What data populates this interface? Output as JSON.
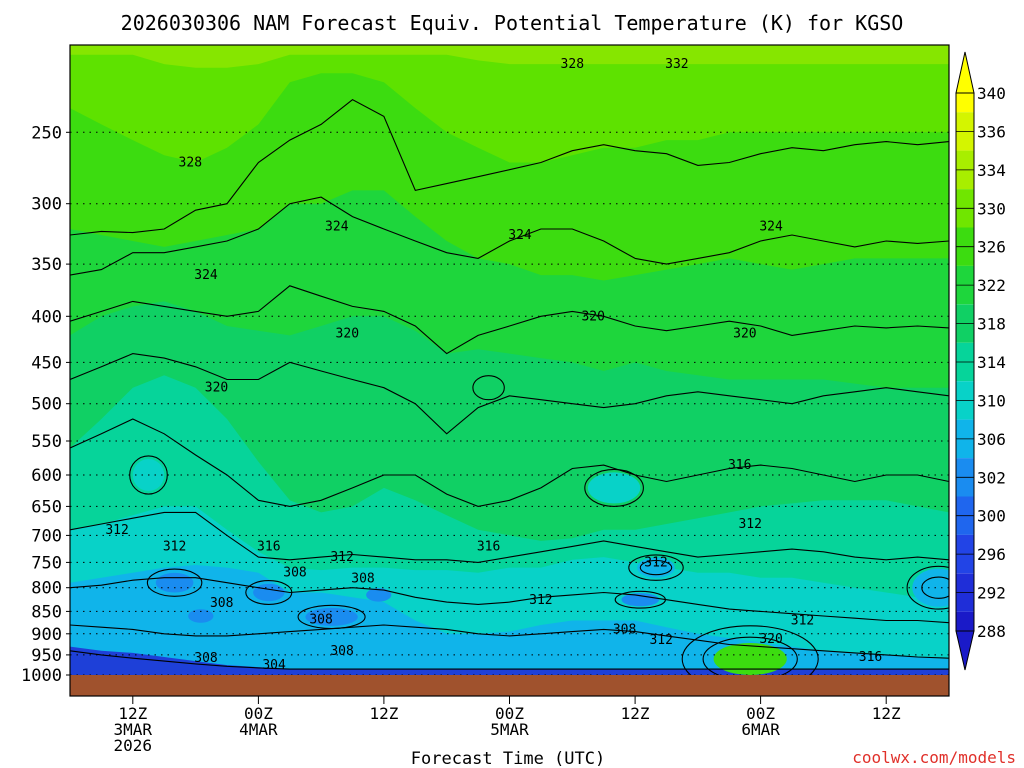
{
  "chart_data": {
    "type": "heatmap",
    "title": "2026030306 NAM Forecast Equiv. Potential Temperature (K) for KGSO",
    "xlabel": "Forecast Time (UTC)",
    "ylabel": "",
    "y_scale": "log",
    "y_inverted": true,
    "ylim": [
      1000,
      200
    ],
    "y_ticks": [
      250,
      300,
      350,
      400,
      450,
      500,
      550,
      600,
      650,
      700,
      750,
      800,
      850,
      900,
      950,
      1000
    ],
    "x_ticks": [
      {
        "line1": "12Z",
        "line2": "3MAR",
        "line3": "2026",
        "hour": 6
      },
      {
        "line1": "00Z",
        "line2": "4MAR",
        "line3": "",
        "hour": 18
      },
      {
        "line1": "12Z",
        "line2": "",
        "line3": "",
        "hour": 30
      },
      {
        "line1": "00Z",
        "line2": "5MAR",
        "line3": "",
        "hour": 42
      },
      {
        "line1": "12Z",
        "line2": "",
        "line3": "",
        "hour": 54
      },
      {
        "line1": "00Z",
        "line2": "6MAR",
        "line3": "",
        "hour": 66
      },
      {
        "line1": "12Z",
        "line2": "",
        "line3": "",
        "hour": 78
      }
    ],
    "xlim_hours": [
      0,
      84
    ],
    "grid": true,
    "colorbar": {
      "labels": [
        "340",
        "336",
        "334",
        "330",
        "326",
        "322",
        "318",
        "314",
        "310",
        "306",
        "302",
        "300",
        "296",
        "292",
        "288"
      ],
      "colors": [
        "#ffff00",
        "#d4f500",
        "#a8ee00",
        "#70e600",
        "#3cdc10",
        "#1ed63c",
        "#10d064",
        "#06d49a",
        "#08d2c8",
        "#10b4ea",
        "#1a8cf0",
        "#1f66ee",
        "#2244e6",
        "#1f2ed8",
        "#1a1ac8"
      ]
    },
    "contour_labels": [
      {
        "text": "328",
        "h": 48,
        "p": 210
      },
      {
        "text": "332",
        "h": 58,
        "p": 210
      },
      {
        "text": "328",
        "h": 11.5,
        "p": 270
      },
      {
        "text": "324",
        "h": 25.5,
        "p": 318
      },
      {
        "text": "324",
        "h": 43,
        "p": 325
      },
      {
        "text": "324",
        "h": 67,
        "p": 318
      },
      {
        "text": "324",
        "h": 13,
        "p": 360
      },
      {
        "text": "320",
        "h": 50,
        "p": 400
      },
      {
        "text": "320",
        "h": 26.5,
        "p": 418
      },
      {
        "text": "320",
        "h": 64.5,
        "p": 418
      },
      {
        "text": "320",
        "h": 14,
        "p": 480
      },
      {
        "text": "316",
        "h": 64,
        "p": 585
      },
      {
        "text": "312",
        "h": 4.5,
        "p": 690
      },
      {
        "text": "312",
        "h": 10,
        "p": 720
      },
      {
        "text": "316",
        "h": 19,
        "p": 720
      },
      {
        "text": "312",
        "h": 65,
        "p": 680
      },
      {
        "text": "316",
        "h": 40,
        "p": 720
      },
      {
        "text": "312",
        "h": 26,
        "p": 740
      },
      {
        "text": "312",
        "h": 56,
        "p": 750
      },
      {
        "text": "308",
        "h": 21.5,
        "p": 770
      },
      {
        "text": "308",
        "h": 28,
        "p": 782
      },
      {
        "text": "308",
        "h": 14.5,
        "p": 832
      },
      {
        "text": "312",
        "h": 45,
        "p": 826
      },
      {
        "text": "308",
        "h": 24,
        "p": 868
      },
      {
        "text": "308",
        "h": 53,
        "p": 890
      },
      {
        "text": "312",
        "h": 70,
        "p": 870
      },
      {
        "text": "312",
        "h": 56.5,
        "p": 915
      },
      {
        "text": "320",
        "h": 67,
        "p": 912
      },
      {
        "text": "308",
        "h": 26,
        "p": 940
      },
      {
        "text": "308",
        "h": 13,
        "p": 958
      },
      {
        "text": "304",
        "h": 19.5,
        "p": 975
      },
      {
        "text": "316",
        "h": 76.5,
        "p": 955
      }
    ],
    "bands": [
      {
        "color": "#1e40d8",
        "p": [
          1000,
          1000,
          1000,
          1000,
          1000,
          1000,
          1000,
          1000,
          1000,
          1000,
          1000,
          1000,
          1000,
          1000,
          1000,
          1000,
          1000,
          1000,
          1000,
          1000,
          1000,
          1000,
          1000,
          1000,
          1000,
          1000,
          1000,
          1000,
          1000
        ]
      },
      {
        "color": "#10b4ea",
        "p": [
          930,
          940,
          945,
          955,
          965,
          975,
          980,
          985,
          985,
          985,
          985,
          985,
          985,
          985,
          985,
          985,
          985,
          985,
          985,
          985,
          985,
          985,
          985,
          985,
          985,
          985,
          985,
          985,
          985
        ]
      },
      {
        "color": "#08d2c8",
        "p": [
          790,
          780,
          770,
          760,
          755,
          760,
          770,
          810,
          810,
          820,
          830,
          870,
          900,
          900,
          895,
          880,
          870,
          870,
          870,
          885,
          900,
          910,
          920,
          930,
          940,
          945,
          950,
          955,
          960
        ]
      },
      {
        "color": "#06d49a",
        "p": [
          690,
          680,
          665,
          650,
          650,
          690,
          730,
          760,
          765,
          760,
          760,
          765,
          765,
          770,
          760,
          760,
          745,
          740,
          750,
          760,
          770,
          770,
          780,
          780,
          790,
          800,
          810,
          820,
          830
        ]
      },
      {
        "color": "#10d064",
        "p": [
          560,
          520,
          480,
          465,
          480,
          520,
          580,
          640,
          660,
          650,
          620,
          640,
          665,
          690,
          700,
          710,
          705,
          690,
          690,
          680,
          670,
          660,
          650,
          645,
          640,
          640,
          640,
          650,
          660
        ]
      },
      {
        "color": "#1ed63c",
        "p": [
          420,
          400,
          390,
          385,
          395,
          410,
          415,
          420,
          410,
          400,
          400,
          415,
          440,
          435,
          440,
          445,
          450,
          460,
          450,
          460,
          465,
          470,
          470,
          470,
          470,
          475,
          480,
          480,
          480
        ]
      },
      {
        "color": "#3cdc10",
        "p": [
          320,
          325,
          330,
          335,
          330,
          325,
          320,
          300,
          300,
          290,
          290,
          310,
          330,
          345,
          350,
          360,
          360,
          365,
          360,
          355,
          350,
          345,
          350,
          355,
          350,
          345,
          345,
          345,
          345
        ]
      },
      {
        "color": "#5ee200",
        "p": [
          235,
          245,
          255,
          265,
          270,
          260,
          245,
          220,
          215,
          215,
          220,
          235,
          250,
          260,
          270,
          270,
          265,
          260,
          260,
          255,
          255,
          250,
          250,
          250,
          250,
          250,
          250,
          250,
          250
        ]
      },
      {
        "color": "#86e600",
        "p": [
          205,
          205,
          205,
          210,
          212,
          212,
          210,
          205,
          205,
          205,
          205,
          205,
          205,
          208,
          210,
          210,
          210,
          210,
          210,
          210,
          210,
          210,
          210,
          210,
          210,
          210,
          210,
          210,
          210
        ]
      }
    ],
    "patches": [
      {
        "color": "#1a8cf0",
        "h": 10,
        "p": 790,
        "rh": 1.8,
        "rp": 20
      },
      {
        "color": "#1a8cf0",
        "h": 19,
        "p": 810,
        "rh": 1.5,
        "rp": 18
      },
      {
        "color": "#1a8cf0",
        "h": 25,
        "p": 862,
        "rh": 2.5,
        "rp": 20
      },
      {
        "color": "#1a8cf0",
        "h": 12.5,
        "p": 860,
        "rh": 1.2,
        "rp": 15
      },
      {
        "color": "#1a8cf0",
        "h": 29.5,
        "p": 815,
        "rh": 1.2,
        "rp": 14
      },
      {
        "color": "#1a8cf0",
        "h": 54.5,
        "p": 825,
        "rh": 1.8,
        "rp": 14
      },
      {
        "color": "#10b4ea",
        "h": 83,
        "p": 800,
        "rh": 2.5,
        "rp": 40
      },
      {
        "color": "#10b4ea",
        "h": 56,
        "p": 760,
        "rh": 1.8,
        "rp": 20
      },
      {
        "color": "#3cdc10",
        "h": 65,
        "p": 960,
        "rh": 3.5,
        "rp": 40
      },
      {
        "color": "#08d2c8",
        "h": 52,
        "p": 620,
        "rh": 2.5,
        "rp": 25
      },
      {
        "color": "#08d2c8",
        "h": 7.5,
        "p": 600,
        "rh": 1.5,
        "rp": 25
      }
    ],
    "contours": [
      [
        325,
        322,
        323,
        320,
        305,
        300,
        270,
        255,
        245,
        230,
        240,
        290,
        285,
        280,
        275,
        270,
        262,
        258,
        262,
        264,
        272,
        270,
        264,
        260,
        262,
        258,
        256,
        258,
        256
      ],
      [
        360,
        355,
        340,
        340,
        335,
        330,
        320,
        300,
        295,
        310,
        320,
        330,
        340,
        345,
        330,
        320,
        320,
        330,
        345,
        350,
        345,
        340,
        330,
        325,
        330,
        335,
        330,
        332,
        330
      ],
      [
        405,
        395,
        385,
        390,
        395,
        400,
        395,
        370,
        380,
        390,
        395,
        410,
        440,
        420,
        410,
        400,
        395,
        400,
        410,
        415,
        410,
        405,
        410,
        420,
        415,
        410,
        412,
        410,
        412
      ],
      [
        470,
        455,
        440,
        445,
        455,
        470,
        470,
        450,
        460,
        470,
        480,
        500,
        540,
        505,
        490,
        495,
        500,
        505,
        500,
        490,
        485,
        490,
        495,
        500,
        490,
        485,
        480,
        485,
        490
      ],
      [
        560,
        540,
        520,
        540,
        570,
        600,
        640,
        650,
        640,
        620,
        600,
        600,
        630,
        650,
        640,
        620,
        590,
        585,
        600,
        610,
        600,
        590,
        585,
        590,
        600,
        610,
        600,
        600,
        610
      ],
      [
        690,
        680,
        670,
        660,
        660,
        700,
        740,
        745,
        740,
        735,
        740,
        745,
        745,
        750,
        740,
        730,
        720,
        710,
        720,
        730,
        740,
        735,
        730,
        725,
        730,
        740,
        745,
        740,
        745
      ],
      [
        800,
        795,
        785,
        780,
        780,
        790,
        800,
        810,
        805,
        800,
        805,
        820,
        830,
        835,
        830,
        820,
        815,
        810,
        815,
        825,
        835,
        845,
        850,
        855,
        860,
        865,
        870,
        870,
        875
      ],
      [
        880,
        885,
        890,
        900,
        905,
        905,
        900,
        895,
        890,
        885,
        880,
        885,
        890,
        900,
        905,
        900,
        895,
        890,
        895,
        905,
        915,
        925,
        930,
        935,
        940,
        945,
        950,
        955,
        958
      ],
      [
        940,
        950,
        958,
        965,
        972,
        978,
        982,
        985,
        985,
        985,
        985,
        985,
        985,
        985,
        985,
        985,
        985,
        985,
        985,
        985,
        985,
        985,
        985,
        985,
        985,
        985,
        985,
        985,
        985
      ]
    ],
    "rings": [
      {
        "h": 10,
        "p": 790,
        "rh": 2.6,
        "rp": 28
      },
      {
        "h": 19,
        "p": 810,
        "rh": 2.2,
        "rp": 25
      },
      {
        "h": 25,
        "p": 862,
        "rh": 3.2,
        "rp": 26
      },
      {
        "h": 56,
        "p": 760,
        "rh": 1.5,
        "rp": 14
      },
      {
        "h": 56,
        "p": 760,
        "rh": 2.6,
        "rp": 25
      },
      {
        "h": 83,
        "p": 800,
        "rh": 3.0,
        "rp": 45
      },
      {
        "h": 83,
        "p": 800,
        "rh": 1.6,
        "rp": 22
      },
      {
        "h": 65,
        "p": 960,
        "rh": 4.5,
        "rp": 55
      },
      {
        "h": 65,
        "p": 960,
        "rh": 6.5,
        "rp": 85
      },
      {
        "h": 52,
        "p": 620,
        "rh": 2.8,
        "rp": 30
      },
      {
        "h": 7.5,
        "p": 600,
        "rh": 1.8,
        "rp": 30
      },
      {
        "h": 54.5,
        "p": 825,
        "rh": 2.4,
        "rp": 18
      },
      {
        "h": 40,
        "p": 480,
        "rh": 1.5,
        "rp": 15
      }
    ],
    "credit": "coolwx.com/models"
  }
}
